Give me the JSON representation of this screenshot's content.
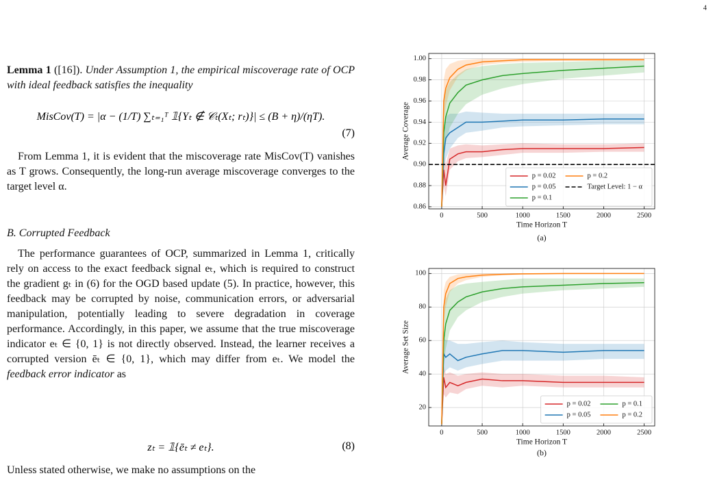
{
  "page_number": "4",
  "lemma": {
    "label": "Lemma 1",
    "ref": "([16]).",
    "text": "Under Assumption 1, the empirical miscoverage rate of OCP with ideal feedback satisfies the inequality"
  },
  "equation_7": {
    "body": "MisCov(T) = |α − (1/T) ∑ₜ₌₁ᵀ 𝟙{Yₜ ∉ 𝒞ₜ(Xₜ; rₜ)}| ≤ (B + η)/(ηT).",
    "number": "(7)"
  },
  "paragraph_1": "From Lemma 1, it is evident that the miscoverage rate MisCov(T) vanishes as T grows. Consequently, the long-run average miscoverage converges to the target level α.",
  "section": "B. Corrupted Feedback",
  "paragraph_2": {
    "text": "The performance guarantees of OCP, summarized in Lemma 1, critically rely on access to the exact feedback signal eₜ, which is required to construct the gradient gₜ in (6) for the OGD based update (5). In practice, however, this feedback may be corrupted by noise, communication errors, or adversarial manipulation, potentially leading to severe degradation in coverage performance. Accordingly, in this paper, we assume that the true miscoverage indicator eₜ ∈ {0, 1} is not directly observed. Instead, the learner receives a corrupted version ēₜ ∈ {0, 1}, which may differ from eₜ. We model the",
    "emphasis": "feedback error indicator",
    "tail": "as"
  },
  "equation_8": {
    "body": "zₜ = 𝟙{ēₜ ≠ eₜ}.",
    "number": "(8)"
  },
  "paragraph_3": "Unless stated otherwise, we make no assumptions on the",
  "chart_data": [
    {
      "type": "line",
      "caption": "(a)",
      "x_label": "Time Horizon T",
      "y_label": "Average Coverage",
      "x": [
        0,
        25,
        50,
        100,
        200,
        300,
        500,
        750,
        1000,
        1500,
        2000,
        2500
      ],
      "xlim": [
        -160,
        2630
      ],
      "xticks": [
        0,
        500,
        1000,
        1500,
        2000,
        2500
      ],
      "ylim": [
        0.858,
        1.005
      ],
      "yticks": [
        {
          "value": 0.86,
          "label": "0.86"
        },
        {
          "value": 0.88,
          "label": "0.88"
        },
        {
          "value": 0.9,
          "label": "0.90"
        },
        {
          "value": 0.92,
          "label": "0.92"
        },
        {
          "value": 0.94,
          "label": "0.94"
        },
        {
          "value": 0.96,
          "label": "0.96"
        },
        {
          "value": 0.98,
          "label": "0.98"
        },
        {
          "value": 1.0,
          "label": "1.00"
        }
      ],
      "grid": true,
      "legend": "lower right",
      "legend_columns": 2,
      "series": [
        {
          "name": "p = 0.02",
          "color": "#d62728",
          "values": [
            0.86,
            0.895,
            0.88,
            0.905,
            0.91,
            0.912,
            0.912,
            0.914,
            0.915,
            0.915,
            0.915,
            0.916
          ],
          "lower": [
            0.86,
            0.88,
            0.87,
            0.895,
            0.903,
            0.906,
            0.907,
            0.909,
            0.911,
            0.911,
            0.912,
            0.912
          ],
          "upper": [
            0.86,
            0.91,
            0.9,
            0.915,
            0.918,
            0.919,
            0.918,
            0.919,
            0.92,
            0.919,
            0.919,
            0.92
          ]
        },
        {
          "name": "p = 0.05",
          "color": "#1f77b4",
          "values": [
            0.86,
            0.91,
            0.925,
            0.93,
            0.935,
            0.94,
            0.94,
            0.941,
            0.942,
            0.942,
            0.943,
            0.943
          ],
          "lower": [
            0.86,
            0.89,
            0.905,
            0.915,
            0.925,
            0.93,
            0.932,
            0.935,
            0.936,
            0.937,
            0.938,
            0.938
          ],
          "upper": [
            0.86,
            0.93,
            0.945,
            0.948,
            0.948,
            0.95,
            0.949,
            0.948,
            0.948,
            0.948,
            0.948,
            0.948
          ]
        },
        {
          "name": "p = 0.1",
          "color": "#2ca02c",
          "values": [
            0.86,
            0.93,
            0.945,
            0.958,
            0.968,
            0.975,
            0.98,
            0.984,
            0.986,
            0.989,
            0.991,
            0.993
          ],
          "lower": [
            0.86,
            0.9,
            0.92,
            0.935,
            0.948,
            0.957,
            0.966,
            0.972,
            0.976,
            0.981,
            0.984,
            0.987
          ],
          "upper": [
            0.86,
            0.96,
            0.97,
            0.978,
            0.985,
            0.99,
            0.993,
            0.995,
            0.996,
            0.997,
            0.998,
            0.998
          ]
        },
        {
          "name": "p = 0.2",
          "color": "#ff7f0e",
          "values": [
            0.86,
            0.96,
            0.972,
            0.982,
            0.99,
            0.994,
            0.997,
            0.998,
            0.999,
            0.999,
            0.999,
            0.999
          ],
          "lower": [
            0.86,
            0.94,
            0.955,
            0.97,
            0.983,
            0.989,
            0.994,
            0.996,
            0.997,
            0.998,
            0.998,
            0.998
          ],
          "upper": [
            0.86,
            0.98,
            0.99,
            0.995,
            0.998,
            0.999,
            1.0,
            1.0,
            1.0,
            1.0,
            1.0,
            1.0
          ]
        }
      ],
      "hline": {
        "name": "Target Level: 1 − α",
        "value": 0.9,
        "color": "#000000",
        "style": "dashed"
      }
    },
    {
      "type": "line",
      "caption": "(b)",
      "x_label": "Time Horizon T",
      "y_label": "Average Set Size",
      "x": [
        0,
        25,
        50,
        100,
        200,
        300,
        500,
        750,
        1000,
        1500,
        2000,
        2500
      ],
      "xlim": [
        -160,
        2630
      ],
      "xticks": [
        0,
        500,
        1000,
        1500,
        2000,
        2500
      ],
      "ylim": [
        9,
        103
      ],
      "yticks": [
        20,
        40,
        60,
        80,
        100
      ],
      "grid": true,
      "legend": "lower right",
      "legend_columns": 2,
      "series": [
        {
          "name": "p = 0.02",
          "color": "#d62728",
          "values": [
            10,
            38,
            32,
            35,
            33,
            35,
            37,
            36,
            36,
            35,
            35,
            35
          ],
          "lower": [
            10,
            28,
            26,
            29,
            28,
            31,
            33,
            32,
            33,
            32,
            32,
            32
          ],
          "upper": [
            10,
            45,
            40,
            41,
            39,
            40,
            41,
            40,
            40,
            39,
            39,
            38
          ]
        },
        {
          "name": "p = 0.05",
          "color": "#1f77b4",
          "values": [
            10,
            52,
            50,
            52,
            48,
            50,
            52,
            54,
            54,
            53,
            54,
            54
          ],
          "lower": [
            10,
            40,
            42,
            44,
            42,
            44,
            46,
            48,
            48,
            48,
            49,
            49
          ],
          "upper": [
            10,
            62,
            60,
            60,
            58,
            58,
            59,
            60,
            59,
            58,
            58,
            58
          ]
        },
        {
          "name": "p = 0.1",
          "color": "#2ca02c",
          "values": [
            10,
            60,
            70,
            78,
            83,
            86,
            89,
            91,
            92,
            93,
            94,
            94.5
          ],
          "lower": [
            10,
            45,
            55,
            66,
            74,
            78,
            83,
            86,
            88,
            90,
            91,
            92
          ],
          "upper": [
            10,
            78,
            85,
            90,
            93,
            94,
            95,
            96,
            97,
            97,
            97,
            97
          ]
        },
        {
          "name": "p = 0.2",
          "color": "#ff7f0e",
          "values": [
            10,
            80,
            88,
            94,
            97,
            98,
            99,
            99.5,
            99.8,
            100,
            100,
            100
          ],
          "lower": [
            10,
            70,
            80,
            89,
            94,
            96,
            98,
            99,
            99.3,
            99.6,
            99.7,
            99.8
          ],
          "upper": [
            10,
            90,
            95,
            98,
            99.5,
            99.8,
            100,
            100,
            100,
            100,
            100,
            100
          ]
        }
      ]
    }
  ]
}
